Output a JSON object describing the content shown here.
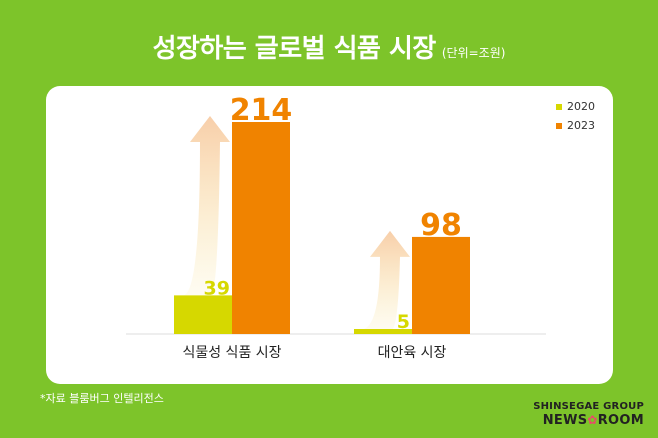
{
  "title": "성장하는 글로벌 식품 시장",
  "unit": "(단위=조원)",
  "source": "*자료 블룸버그 인텔리전스",
  "brand": {
    "line1": "SHINSEGAE GROUP",
    "line2_a": "NEWS",
    "line2_b": "ROOM"
  },
  "colors": {
    "background": "#7dc42a",
    "series_2020": "#d6d800",
    "series_2023": "#f08300",
    "arrow": "#f7c9a0"
  },
  "chart_data": {
    "type": "bar",
    "categories": [
      "식물성 식품 시장",
      "대안육 시장"
    ],
    "series": [
      {
        "name": "2020",
        "values": [
          39,
          5
        ]
      },
      {
        "name": "2023",
        "values": [
          214,
          98
        ]
      }
    ],
    "ylim": [
      0,
      214
    ],
    "legend": "top-right",
    "grid": false
  }
}
